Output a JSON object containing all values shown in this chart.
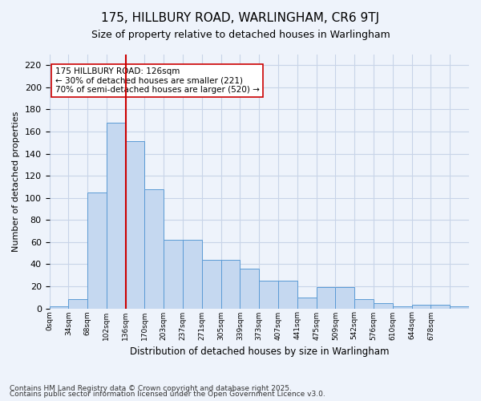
{
  "title1": "175, HILLBURY ROAD, WARLINGHAM, CR6 9TJ",
  "title2": "Size of property relative to detached houses in Warlingham",
  "xlabel": "Distribution of detached houses by size in Warlingham",
  "ylabel": "Number of detached properties",
  "bar_values": [
    2,
    8,
    105,
    168,
    151,
    108,
    62,
    62,
    44,
    44,
    36,
    25,
    25,
    10,
    19,
    19,
    8,
    5,
    2,
    3,
    3,
    2
  ],
  "bin_labels": [
    "0sqm",
    "34sqm",
    "68sqm",
    "102sqm",
    "136sqm",
    "170sqm",
    "203sqm",
    "237sqm",
    "271sqm",
    "305sqm",
    "339sqm",
    "373sqm",
    "407sqm",
    "441sqm",
    "475sqm",
    "509sqm",
    "542sqm",
    "576sqm",
    "610sqm",
    "644sqm",
    "678sqm",
    ""
  ],
  "bar_color": "#c5d8f0",
  "bar_edge_color": "#5b9bd5",
  "grid_color": "#c8d4e8",
  "background_color": "#eef3fb",
  "vline_x_bar_index": 3,
  "vline_color": "#cc0000",
  "annotation_text": "175 HILLBURY ROAD: 126sqm\n← 30% of detached houses are smaller (221)\n70% of semi-detached houses are larger (520) →",
  "annotation_box_color": "#ffffff",
  "annotation_box_edge": "#cc0000",
  "ylim": [
    0,
    230
  ],
  "yticks": [
    0,
    20,
    40,
    60,
    80,
    100,
    120,
    140,
    160,
    180,
    200,
    220
  ],
  "footer1": "Contains HM Land Registry data © Crown copyright and database right 2025.",
  "footer2": "Contains public sector information licensed under the Open Government Licence v3.0."
}
